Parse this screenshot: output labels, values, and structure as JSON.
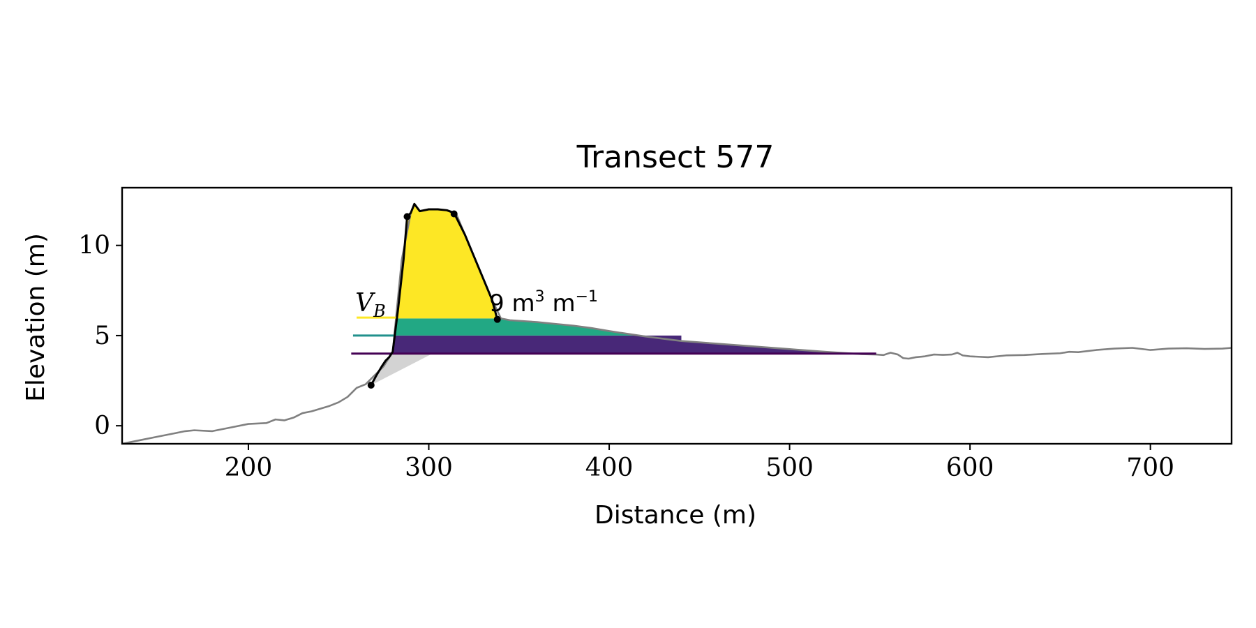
{
  "chart_data": {
    "type": "area",
    "title": "Transect 577",
    "xlabel": "Distance (m)",
    "ylabel": "Elevation (m)",
    "xlim": [
      130,
      745
    ],
    "ylim": [
      -1,
      13.2
    ],
    "xticks": [
      200,
      300,
      400,
      500,
      600,
      700
    ],
    "yticks": [
      0,
      5,
      10
    ],
    "grid": false,
    "legend": "none",
    "annotation": {
      "text_main": "V",
      "text_sub": "B",
      "text_value": "9 m",
      "text_sup1": "3",
      "text_mid": " m",
      "text_sup2": "−1",
      "x": 260,
      "y": 6.5
    },
    "profile": {
      "name": "profile",
      "color": "#808080",
      "x": [
        130,
        140,
        150,
        160,
        165,
        170,
        180,
        190,
        200,
        210,
        215,
        220,
        225,
        230,
        235,
        240,
        245,
        250,
        255,
        260,
        265,
        270,
        275,
        280,
        285,
        290,
        292,
        295,
        300,
        305,
        310,
        315,
        320,
        325,
        330,
        335,
        340,
        345,
        350,
        360,
        370,
        380,
        390,
        400,
        420,
        440,
        460,
        480,
        500,
        520,
        540,
        548,
        552,
        556,
        560,
        563,
        566,
        570,
        575,
        580,
        585,
        590,
        593,
        596,
        600,
        610,
        620,
        630,
        640,
        650,
        655,
        660,
        670,
        680,
        690,
        700,
        710,
        720,
        730,
        740,
        745
      ],
      "y": [
        -1.0,
        -0.8,
        -0.6,
        -0.4,
        -0.3,
        -0.25,
        -0.3,
        -0.1,
        0.1,
        0.15,
        0.35,
        0.3,
        0.45,
        0.7,
        0.8,
        0.95,
        1.1,
        1.3,
        1.6,
        2.1,
        2.3,
        2.8,
        3.3,
        4.1,
        9.2,
        11.8,
        12.3,
        11.9,
        12.0,
        12.0,
        11.95,
        11.8,
        10.6,
        9.4,
        8.2,
        7.0,
        5.95,
        5.85,
        5.82,
        5.75,
        5.65,
        5.55,
        5.42,
        5.25,
        4.95,
        4.7,
        4.55,
        4.4,
        4.25,
        4.1,
        3.97,
        3.95,
        3.92,
        4.05,
        3.95,
        3.75,
        3.72,
        3.8,
        3.85,
        3.95,
        3.93,
        3.95,
        4.05,
        3.9,
        3.85,
        3.8,
        3.9,
        3.92,
        3.98,
        4.02,
        4.1,
        4.08,
        4.2,
        4.28,
        4.32,
        4.2,
        4.28,
        4.3,
        4.26,
        4.28,
        4.32
      ]
    },
    "dune_profile": {
      "name": "dune",
      "color": "#000000",
      "x": [
        268,
        271,
        274,
        276,
        278,
        280,
        283,
        286,
        288,
        290,
        292,
        295,
        300,
        305,
        310,
        314,
        320,
        325,
        330,
        335,
        338
      ],
      "y": [
        2.25,
        2.8,
        3.3,
        3.6,
        3.8,
        4.1,
        6.5,
        9.2,
        11.6,
        11.8,
        12.3,
        11.9,
        12.0,
        12.0,
        11.95,
        11.8,
        10.6,
        9.4,
        8.2,
        7.0,
        5.9
      ]
    },
    "markers": [
      {
        "x": 268,
        "y": 2.25
      },
      {
        "x": 288,
        "y": 11.6
      },
      {
        "x": 314,
        "y": 11.75
      },
      {
        "x": 338,
        "y": 5.9
      }
    ],
    "levels": [
      {
        "name": "level-yellow",
        "value": 6.0,
        "color": "#fde725",
        "x_start": 260
      },
      {
        "name": "level-teal",
        "value": 5.0,
        "color": "#21918c",
        "x_start": 258
      },
      {
        "name": "level-purple",
        "value": 4.0,
        "color": "#440154",
        "x_start": 257
      }
    ],
    "fills": [
      {
        "name": "dune-volume-fill",
        "color": "#fde725"
      },
      {
        "name": "upper-band-fill",
        "color": "#22a884",
        "y0": 5.0,
        "y1": 5.95,
        "x_end": 462
      },
      {
        "name": "lower-band-fill",
        "color": "#482878",
        "y0": 4.0,
        "y1": 5.0,
        "x_end": 548
      },
      {
        "name": "toe-wedge-fill",
        "color": "#d3d3d3"
      }
    ]
  }
}
